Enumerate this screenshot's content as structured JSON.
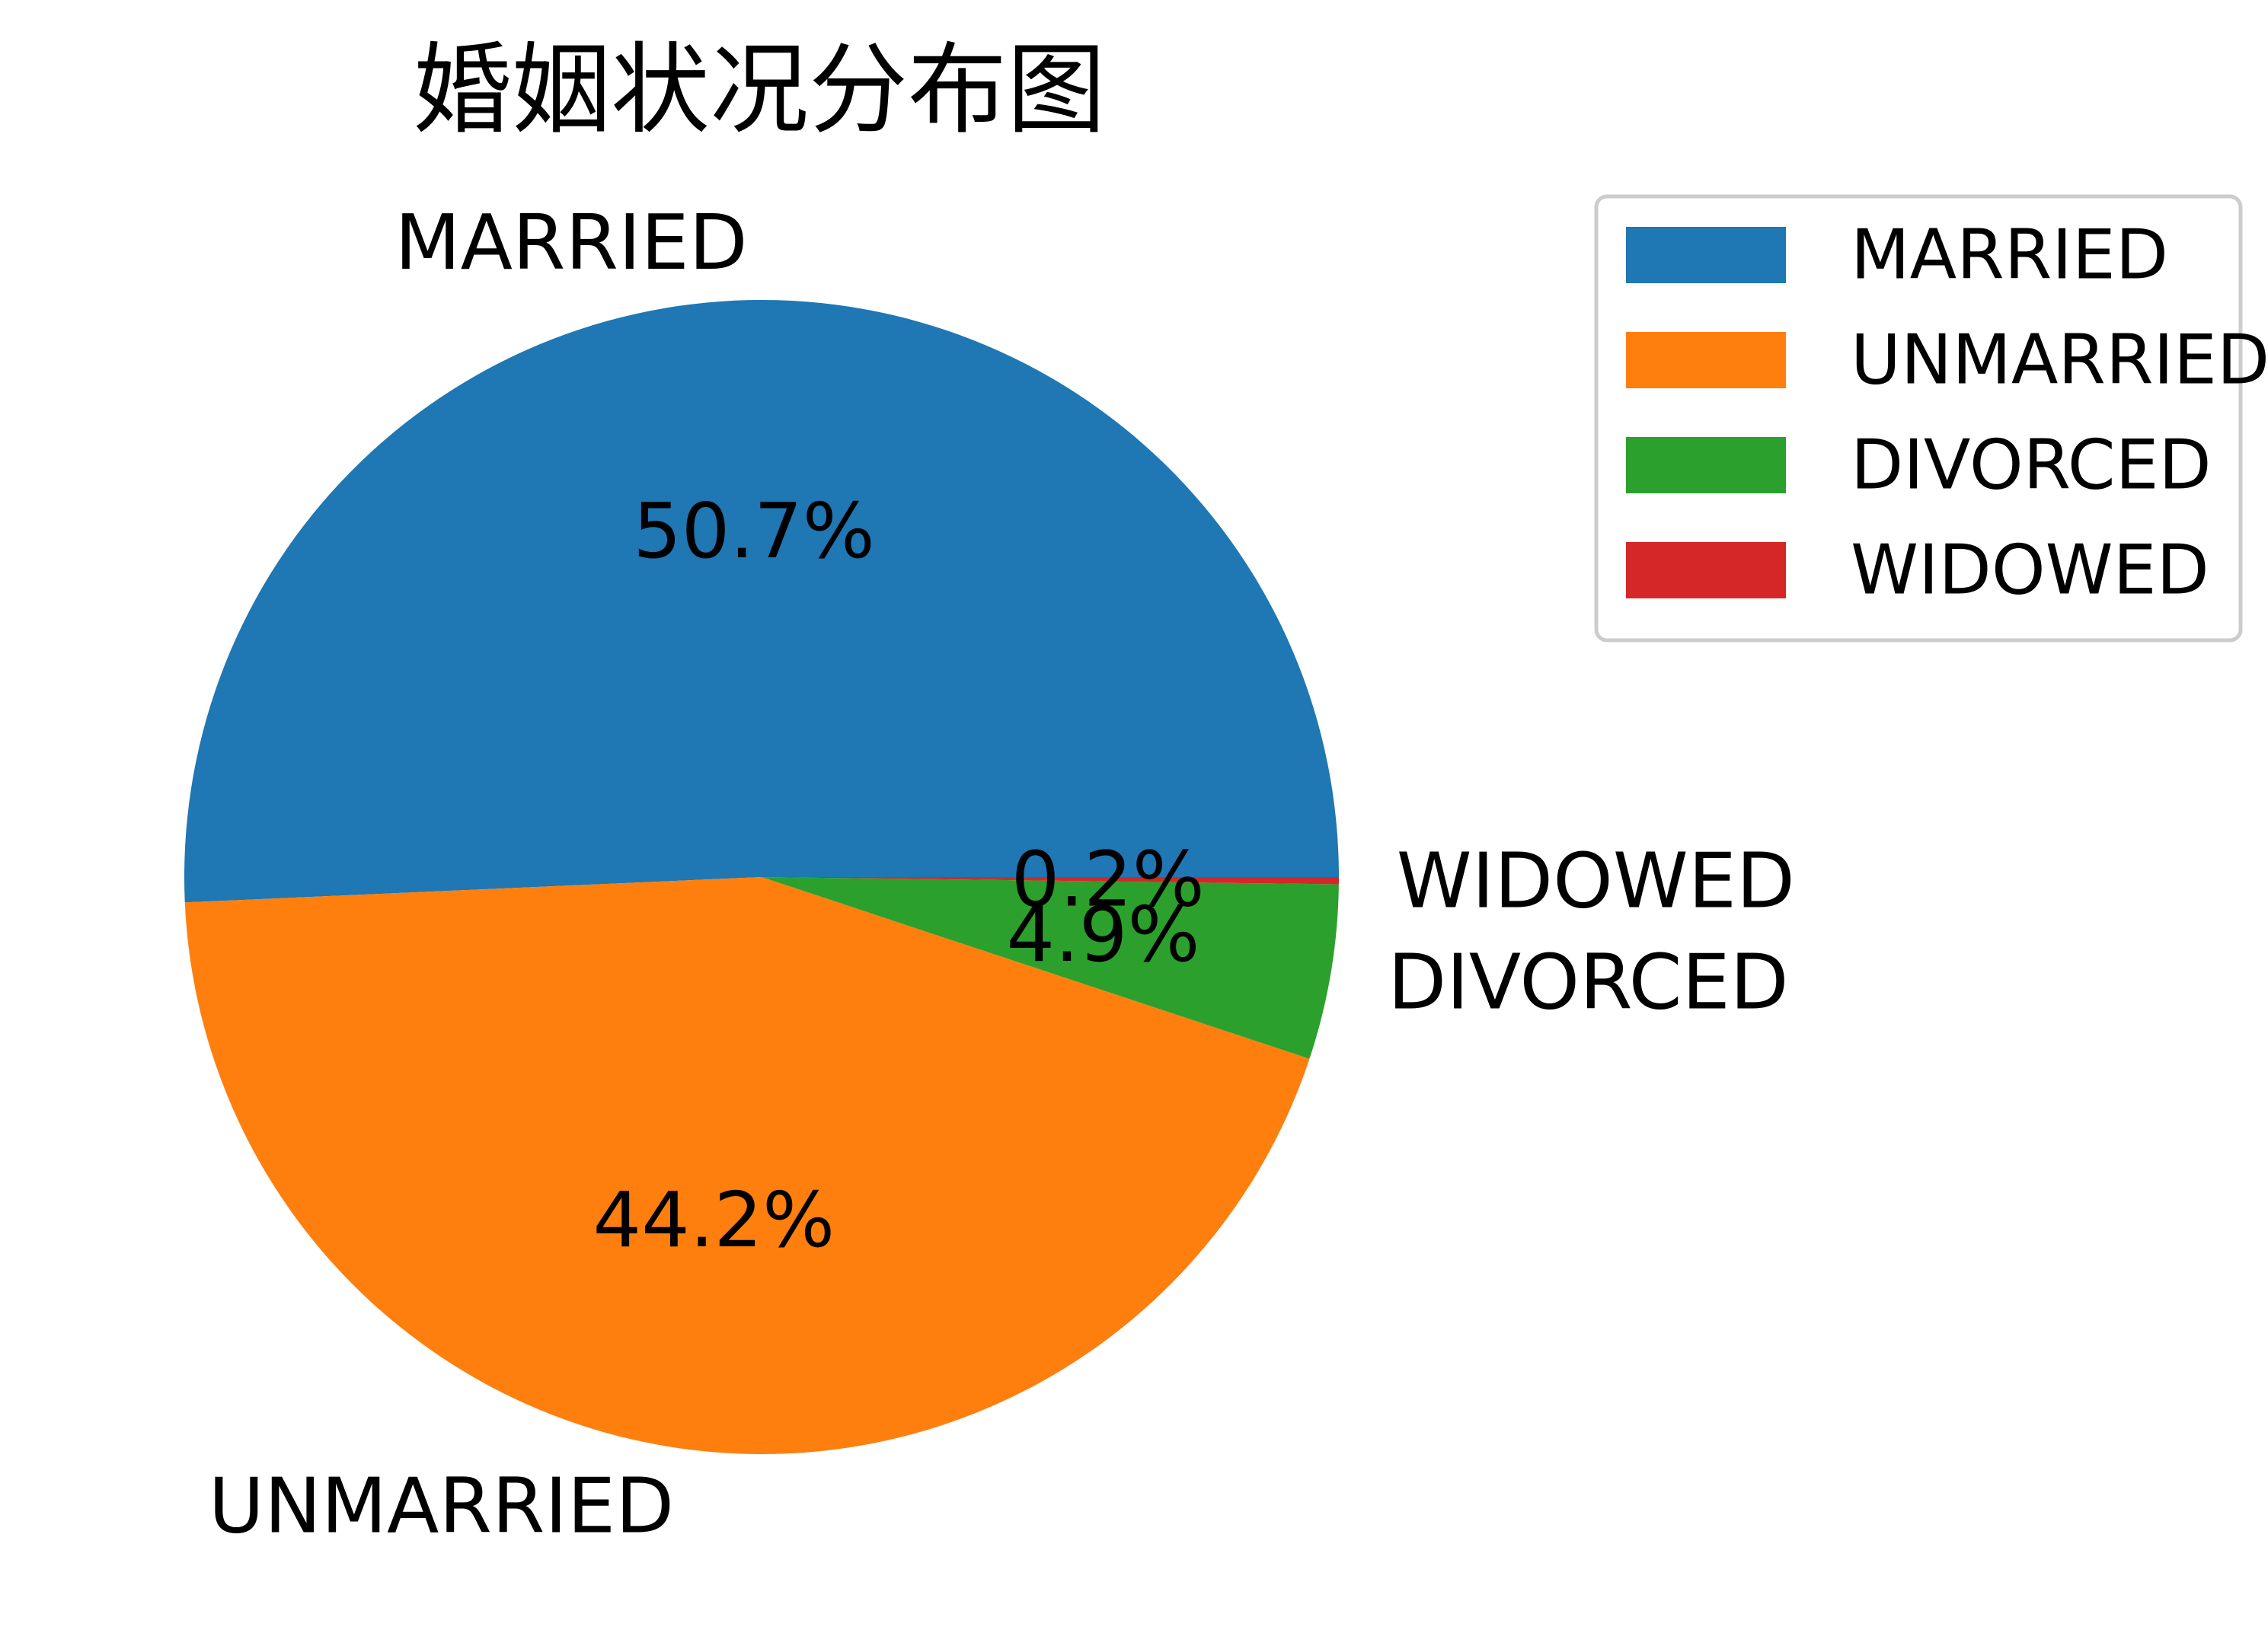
{
  "chart_data": {
    "type": "pie",
    "title": "婚姻状况分布图",
    "categories": [
      "MARRIED",
      "UNMARRIED",
      "DIVORCED",
      "WIDOWED"
    ],
    "values": [
      50.7,
      44.2,
      4.9,
      0.2
    ],
    "value_labels": [
      "50.7%",
      "44.2%",
      "4.9%",
      "0.2%"
    ],
    "colors": [
      "#1f77b4",
      "#ff7f0e",
      "#2ca02c",
      "#d62728"
    ],
    "start_angle_deg": 0,
    "direction": "counterclockwise",
    "legend": {
      "position": "top-right",
      "entries": [
        "MARRIED",
        "UNMARRIED",
        "DIVORCED",
        "WIDOWED"
      ]
    }
  }
}
